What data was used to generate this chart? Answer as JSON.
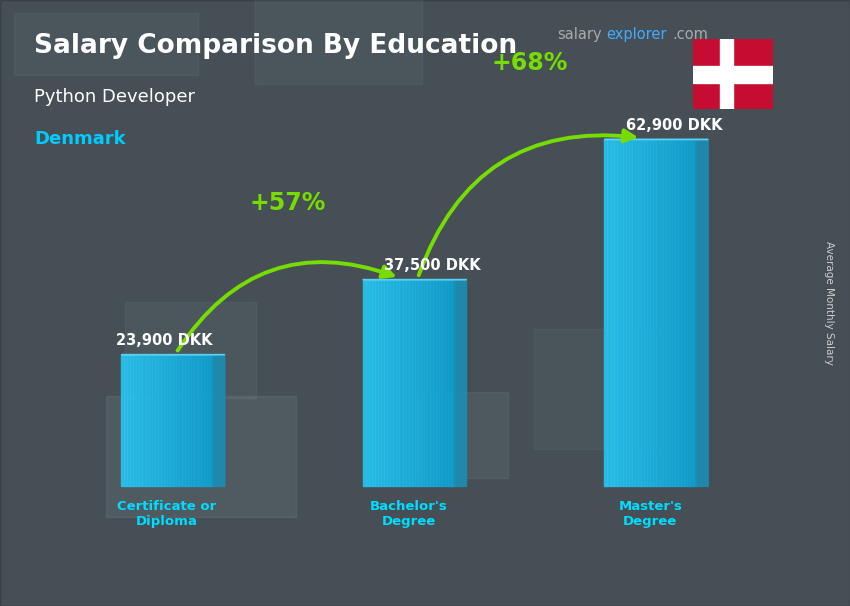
{
  "title": "Salary Comparison By Education",
  "subtitle": "Python Developer",
  "country": "Denmark",
  "ylabel": "Average Monthly Salary",
  "website_gray": "salary",
  "website_blue": "explorer",
  "website_gray2": ".com",
  "categories": [
    "Certificate or\nDiploma",
    "Bachelor's\nDegree",
    "Master's\nDegree"
  ],
  "values": [
    23900,
    37500,
    62900
  ],
  "value_labels": [
    "23,900 DKK",
    "37,500 DKK",
    "62,900 DKK"
  ],
  "pct_labels": [
    "+57%",
    "+68%"
  ],
  "bar_front_color": "#29c5f0",
  "bar_right_color": "#1a8fb5",
  "bar_top_color": "#60d8f8",
  "bg_color": "#6b7a84",
  "overlay_color": "#000000",
  "overlay_alpha": 0.35,
  "title_color": "#ffffff",
  "subtitle_color": "#ffffff",
  "country_color": "#00ccff",
  "value_label_color": "#ffffff",
  "pct_color": "#77dd00",
  "arrow_color": "#77dd00",
  "cat_label_color": "#00ddff",
  "website_gray_color": "#aaaaaa",
  "website_blue_color": "#44aaff",
  "ylabel_color": "#cccccc",
  "flag_red": "#C60C30",
  "flag_white": "#ffffff",
  "ylim_max": 75000,
  "bar_width": 0.38,
  "x_positions": [
    0,
    1,
    2
  ],
  "side_ratio": 0.13,
  "side_skew": 0.5
}
